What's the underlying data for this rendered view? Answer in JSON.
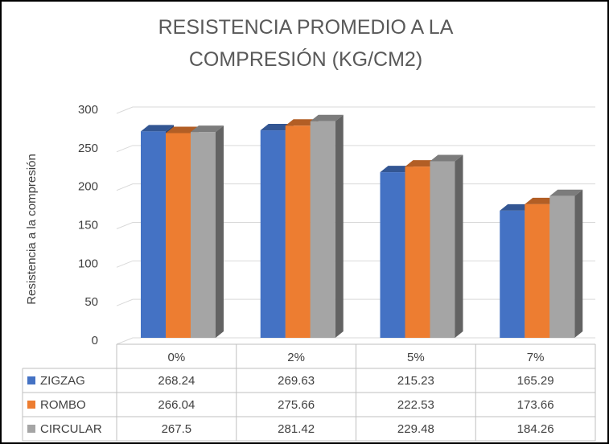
{
  "chart_data": {
    "type": "bar3d",
    "title": "RESISTENCIA PROMEDIO A LA COMPRESIÓN (KG/CM2)",
    "y_label": "Resistencia a la compresión",
    "categories": [
      "0%",
      "2%",
      "5%",
      "7%"
    ],
    "series": [
      {
        "name": "ZIGZAG",
        "color": "#4472c4",
        "values": [
          268.24,
          269.63,
          215.23,
          165.29
        ]
      },
      {
        "name": "ROMBO",
        "color": "#ed7d31",
        "values": [
          266.04,
          275.66,
          222.53,
          173.66
        ]
      },
      {
        "name": "CIRCULAR",
        "color": "#a5a5a5",
        "values": [
          267.5,
          281.42,
          229.48,
          184.26
        ]
      }
    ],
    "ylim": [
      0,
      300
    ],
    "yticks": [
      0,
      50,
      100,
      150,
      200,
      250,
      300
    ],
    "grid": true
  }
}
